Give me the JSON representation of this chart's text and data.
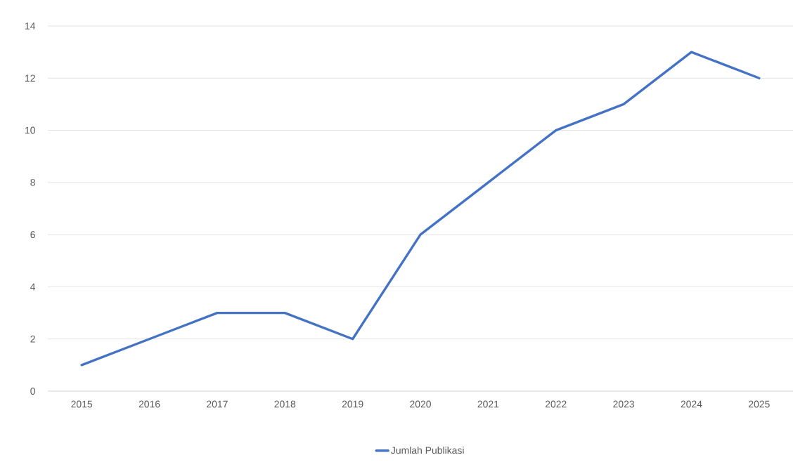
{
  "chart_data": {
    "type": "line",
    "categories": [
      "2015",
      "2016",
      "2017",
      "2018",
      "2019",
      "2020",
      "2021",
      "2022",
      "2023",
      "2024",
      "2025"
    ],
    "series": [
      {
        "name": "Jumlah Publikasi",
        "color": "#4472c4",
        "values": [
          1,
          2,
          3,
          3,
          2,
          6,
          8,
          10,
          11,
          13,
          12
        ]
      }
    ],
    "ylim": [
      0,
      14
    ],
    "yticks": [
      0,
      2,
      4,
      6,
      8,
      10,
      12,
      14
    ],
    "grid": "y",
    "legend": "bottom"
  }
}
